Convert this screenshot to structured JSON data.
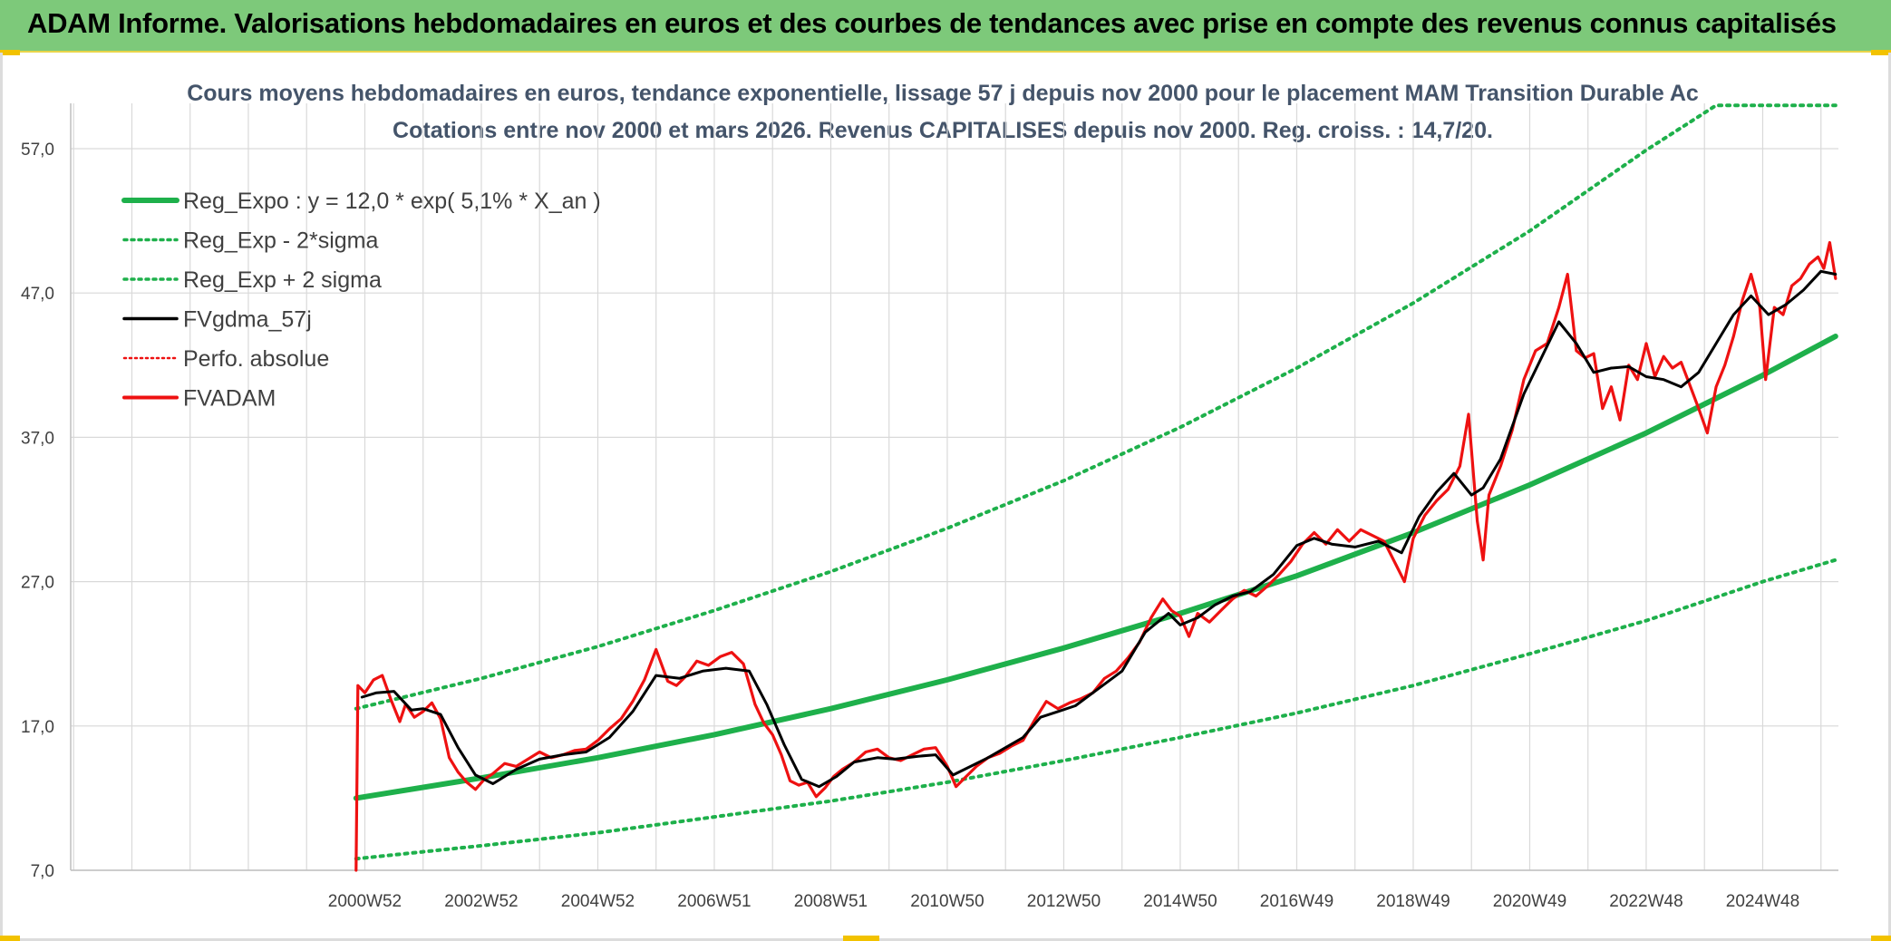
{
  "banner": {
    "title": "ADAM Informe. Valorisations hebdomadaires en euros et des courbes de tendances avec prise en compte des revenus connus capitalisés"
  },
  "colors": {
    "banner_bg": "#7dc97a",
    "trend_green": "#1eb04b",
    "smooth_black": "#000000",
    "price_red": "#ee1111",
    "title_color": "#44546a",
    "grid": "#d9d9d9"
  },
  "chart_data": {
    "type": "line",
    "title": "Cours moyens hebdomadaires en euros, tendance exponentielle, lissage 57 j depuis nov 2000 pour le placement MAM Transition Durable Ac",
    "subtitle": "Cotations entre nov 2000 et mars 2026. Revenus CAPITALISES depuis nov 2000. Reg. croiss. : 14,7/20.",
    "xlabel": "",
    "ylabel": "",
    "ylim": [
      7,
      57
    ],
    "xlim": [
      1995.95,
      2026.3
    ],
    "y_ticks": [
      "7,0",
      "17,0",
      "27,0",
      "37,0",
      "47,0",
      "57,0"
    ],
    "y_tick_values": [
      7,
      17,
      27,
      37,
      47,
      57
    ],
    "x_ticks": [
      "2000W52",
      "2002W52",
      "2004W52",
      "2006W51",
      "2008W51",
      "2010W50",
      "2012W50",
      "2014W50",
      "2016W49",
      "2018W49",
      "2020W49",
      "2022W48",
      "2024W48"
    ],
    "x_tick_years": [
      2001,
      2003,
      2005,
      2007,
      2009,
      2011,
      2013,
      2015,
      2017,
      2019,
      2021,
      2023,
      2025
    ],
    "grid": true,
    "legend_position": "top-left",
    "legend": [
      {
        "label": "Reg_Expo : y = 12,0 * exp( 5,1% *  X_an )",
        "style": "solid-thick",
        "color": "#1eb04b"
      },
      {
        "label": "Reg_Exp - 2*sigma",
        "style": "dotted",
        "color": "#1eb04b"
      },
      {
        "label": "Reg_Exp + 2 sigma",
        "style": "dotted",
        "color": "#1eb04b"
      },
      {
        "label": "FVgdma_57j",
        "style": "solid",
        "color": "#000000"
      },
      {
        "label": "Perfo. absolue",
        "style": "dotted",
        "color": "#ee1111"
      },
      {
        "label": "FVADAM",
        "style": "solid",
        "color": "#ee1111"
      }
    ],
    "series": [
      {
        "name": "Reg_Expo : y = 12,0 * exp( 5,1% *  X_an )",
        "x": [
          2000.85,
          2003,
          2005,
          2007,
          2009,
          2011,
          2013,
          2015,
          2017,
          2019,
          2021,
          2023,
          2025,
          2026.25
        ],
        "values": [
          12.0,
          13.4,
          14.8,
          16.4,
          18.2,
          20.2,
          22.4,
          24.8,
          27.4,
          30.4,
          33.7,
          37.3,
          41.3,
          44.0
        ]
      },
      {
        "name": "Reg_Exp + 2 sigma",
        "x": [
          2000.85,
          2003,
          2005,
          2007,
          2009,
          2011,
          2013,
          2015,
          2017,
          2019,
          2021,
          2023,
          2024.2,
          2025,
          2026.25
        ],
        "values": [
          18.2,
          20.3,
          22.5,
          25.0,
          27.7,
          30.7,
          34.0,
          37.7,
          41.8,
          46.3,
          51.3,
          56.9,
          60.0,
          60.0,
          60.0
        ]
      },
      {
        "name": "Reg_Exp - 2*sigma",
        "x": [
          2000.85,
          2003,
          2005,
          2007,
          2009,
          2011,
          2013,
          2015,
          2017,
          2019,
          2021,
          2023,
          2025,
          2026.25
        ],
        "values": [
          7.8,
          8.7,
          9.6,
          10.7,
          11.8,
          13.1,
          14.6,
          16.2,
          17.9,
          19.8,
          22.0,
          24.3,
          27.0,
          28.5
        ]
      },
      {
        "name": "FVgdma_57j",
        "x": [
          2000.95,
          2001.2,
          2001.5,
          2001.8,
          2002.0,
          2002.3,
          2002.6,
          2002.9,
          2003.2,
          2003.6,
          2004.0,
          2004.4,
          2004.8,
          2005.2,
          2005.6,
          2006.0,
          2006.4,
          2006.8,
          2007.2,
          2007.6,
          2007.9,
          2008.2,
          2008.5,
          2008.8,
          2009.1,
          2009.4,
          2009.8,
          2010.1,
          2010.5,
          2010.8,
          2011.1,
          2011.4,
          2011.7,
          2012.0,
          2012.3,
          2012.6,
          2012.9,
          2013.2,
          2013.6,
          2014.0,
          2014.4,
          2014.8,
          2015.0,
          2015.3,
          2015.6,
          2015.9,
          2016.2,
          2016.6,
          2017.0,
          2017.3,
          2017.6,
          2018.0,
          2018.4,
          2018.8,
          2019.1,
          2019.4,
          2019.7,
          2020.0,
          2020.2,
          2020.5,
          2020.9,
          2021.2,
          2021.5,
          2021.8,
          2022.1,
          2022.4,
          2022.7,
          2023.0,
          2023.3,
          2023.6,
          2023.9,
          2024.2,
          2024.5,
          2024.8,
          2025.1,
          2025.4,
          2025.7,
          2026.0,
          2026.25
        ],
        "values": [
          19.0,
          19.3,
          19.4,
          18.1,
          18.2,
          17.8,
          15.5,
          13.6,
          13.0,
          14.0,
          14.7,
          15.0,
          15.2,
          16.2,
          18.0,
          20.5,
          20.3,
          20.8,
          21.0,
          20.8,
          18.5,
          15.7,
          13.3,
          12.8,
          13.5,
          14.5,
          14.8,
          14.7,
          14.9,
          15.0,
          13.6,
          14.2,
          14.8,
          15.5,
          16.2,
          17.6,
          18.0,
          18.4,
          19.6,
          20.8,
          23.5,
          24.8,
          24.0,
          24.5,
          25.4,
          26.0,
          26.3,
          27.5,
          29.5,
          30.0,
          29.6,
          29.4,
          29.8,
          29.0,
          31.5,
          33.2,
          34.5,
          33.0,
          33.5,
          35.5,
          40.0,
          42.5,
          45.0,
          43.5,
          41.5,
          41.8,
          41.9,
          41.2,
          41.0,
          40.5,
          41.5,
          43.5,
          45.5,
          46.8,
          45.5,
          46.2,
          47.2,
          48.5,
          48.3
        ]
      },
      {
        "name": "FVADAM",
        "x": [
          2000.85,
          2000.88,
          2001.0,
          2001.15,
          2001.3,
          2001.45,
          2001.6,
          2001.7,
          2001.85,
          2002.0,
          2002.15,
          2002.3,
          2002.45,
          2002.6,
          2002.75,
          2002.9,
          2003.05,
          2003.2,
          2003.4,
          2003.6,
          2003.8,
          2004.0,
          2004.2,
          2004.4,
          2004.6,
          2004.8,
          2005.0,
          2005.2,
          2005.4,
          2005.6,
          2005.8,
          2006.0,
          2006.2,
          2006.35,
          2006.5,
          2006.7,
          2006.9,
          2007.1,
          2007.3,
          2007.5,
          2007.7,
          2007.85,
          2008.0,
          2008.15,
          2008.3,
          2008.45,
          2008.6,
          2008.75,
          2008.9,
          2009.05,
          2009.2,
          2009.4,
          2009.6,
          2009.8,
          2010.0,
          2010.2,
          2010.4,
          2010.6,
          2010.8,
          2011.0,
          2011.15,
          2011.3,
          2011.5,
          2011.7,
          2011.9,
          2012.1,
          2012.3,
          2012.5,
          2012.7,
          2012.9,
          2013.1,
          2013.3,
          2013.5,
          2013.7,
          2013.9,
          2014.1,
          2014.3,
          2014.5,
          2014.7,
          2014.85,
          2015.0,
          2015.15,
          2015.3,
          2015.5,
          2015.7,
          2015.9,
          2016.1,
          2016.3,
          2016.5,
          2016.7,
          2016.9,
          2017.1,
          2017.3,
          2017.5,
          2017.7,
          2017.9,
          2018.1,
          2018.3,
          2018.5,
          2018.7,
          2018.85,
          2019.0,
          2019.2,
          2019.4,
          2019.6,
          2019.8,
          2019.95,
          2020.1,
          2020.2,
          2020.3,
          2020.5,
          2020.7,
          2020.9,
          2021.1,
          2021.3,
          2021.5,
          2021.65,
          2021.8,
          2021.95,
          2022.1,
          2022.25,
          2022.4,
          2022.55,
          2022.7,
          2022.85,
          2023.0,
          2023.15,
          2023.3,
          2023.45,
          2023.6,
          2023.75,
          2023.9,
          2024.05,
          2024.2,
          2024.35,
          2024.5,
          2024.65,
          2024.8,
          2024.95,
          2025.05,
          2025.2,
          2025.35,
          2025.5,
          2025.65,
          2025.8,
          2025.95,
          2026.05,
          2026.15,
          2026.25
        ],
        "values": [
          7.0,
          19.8,
          19.3,
          20.2,
          20.5,
          18.8,
          17.3,
          18.5,
          17.6,
          18.0,
          18.6,
          17.5,
          14.8,
          13.8,
          13.1,
          12.6,
          13.3,
          13.7,
          14.4,
          14.2,
          14.7,
          15.2,
          14.8,
          15.0,
          15.3,
          15.4,
          16.0,
          16.8,
          17.5,
          18.7,
          20.2,
          22.3,
          20.1,
          19.8,
          20.4,
          21.5,
          21.2,
          21.8,
          22.1,
          21.3,
          18.5,
          17.2,
          16.4,
          15.0,
          13.2,
          12.9,
          13.1,
          12.1,
          12.7,
          13.5,
          14.0,
          14.5,
          15.2,
          15.4,
          14.8,
          14.6,
          15.0,
          15.4,
          15.5,
          14.2,
          12.8,
          13.4,
          14.2,
          14.8,
          15.1,
          15.6,
          16.0,
          17.4,
          18.7,
          18.2,
          18.6,
          18.9,
          19.3,
          20.3,
          20.8,
          21.7,
          22.8,
          24.5,
          25.8,
          25.0,
          24.6,
          23.2,
          24.8,
          24.2,
          25.0,
          25.8,
          26.4,
          26.0,
          26.7,
          27.5,
          28.4,
          29.6,
          30.4,
          29.6,
          30.6,
          29.8,
          30.6,
          30.2,
          29.8,
          28.2,
          27.0,
          30.0,
          31.6,
          32.6,
          33.4,
          35.0,
          38.6,
          31.2,
          28.5,
          33.0,
          35.0,
          37.5,
          41.0,
          43.0,
          43.5,
          46.0,
          48.3,
          43.0,
          42.5,
          42.8,
          39.0,
          40.5,
          38.2,
          42.0,
          41.0,
          43.5,
          41.2,
          42.6,
          41.8,
          42.2,
          40.6,
          39.0,
          37.3,
          40.5,
          42.0,
          44.0,
          46.5,
          48.3,
          46.0,
          41.0,
          46.0,
          45.5,
          47.5,
          48.0,
          49.0,
          49.5,
          48.7,
          50.5,
          48.0
        ]
      }
    ]
  }
}
